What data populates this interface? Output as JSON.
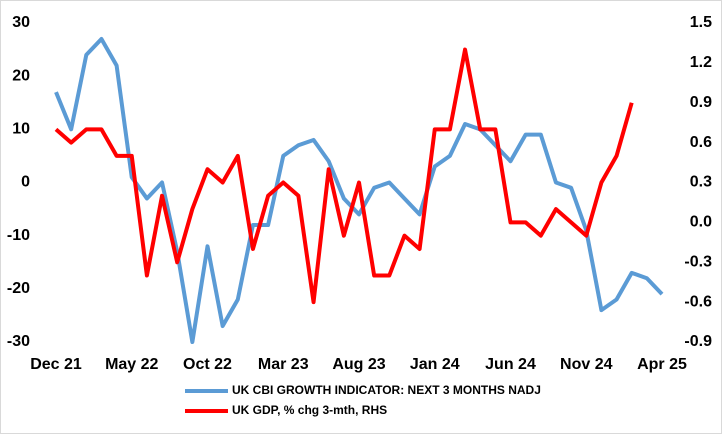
{
  "chart_data": {
    "type": "line",
    "categories": [
      "Dec 21",
      null,
      null,
      null,
      null,
      "May 22",
      null,
      null,
      null,
      null,
      "Oct 22",
      null,
      null,
      null,
      null,
      "Mar 23",
      null,
      null,
      null,
      null,
      "Aug 23",
      null,
      null,
      null,
      null,
      "Jan 24",
      null,
      null,
      null,
      null,
      "Jun 24",
      null,
      null,
      null,
      null,
      "Nov 24",
      null,
      null,
      null,
      null,
      "Apr 25"
    ],
    "series": [
      {
        "name": "UK CBI GROWTH INDICATOR: NEXT 3 MONTHS NADJ",
        "color": "#5b9bd5",
        "axis": "y",
        "values": [
          17,
          10,
          24,
          27,
          22,
          1,
          -3,
          0,
          -13,
          -30,
          -12,
          -27,
          -22,
          -8,
          -8,
          5,
          7,
          8,
          4,
          -3,
          -6,
          -1,
          0,
          -3,
          -6,
          3,
          5,
          11,
          10,
          7,
          4,
          9,
          9,
          0,
          -1,
          -9,
          -24,
          -22,
          -17,
          -18,
          -21
        ]
      },
      {
        "name": "UK GDP, % chg 3-mth, RHS",
        "color": "#ff0000",
        "axis": "y2",
        "values": [
          0.7,
          0.6,
          0.7,
          0.7,
          0.5,
          0.5,
          -0.4,
          0.2,
          -0.3,
          0.1,
          0.4,
          0.3,
          0.5,
          -0.2,
          0.2,
          0.3,
          0.2,
          -0.6,
          0.4,
          -0.1,
          0.3,
          -0.4,
          -0.4,
          -0.1,
          -0.2,
          0.7,
          0.7,
          1.3,
          0.7,
          0.7,
          0.0,
          0.0,
          -0.1,
          0.1,
          0.0,
          -0.1,
          0.3,
          0.5,
          0.9,
          null,
          null
        ]
      }
    ],
    "ylim": [
      -30,
      30
    ],
    "yticks": [
      30,
      20,
      10,
      0,
      -10,
      -20,
      -30
    ],
    "y2lim": [
      -0.9,
      1.5
    ],
    "y2ticks": [
      1.5,
      1.2,
      0.9,
      0.6,
      0.3,
      {
        "value": 0,
        "label": "0.0"
      },
      -0.3,
      -0.6,
      -0.9
    ]
  }
}
